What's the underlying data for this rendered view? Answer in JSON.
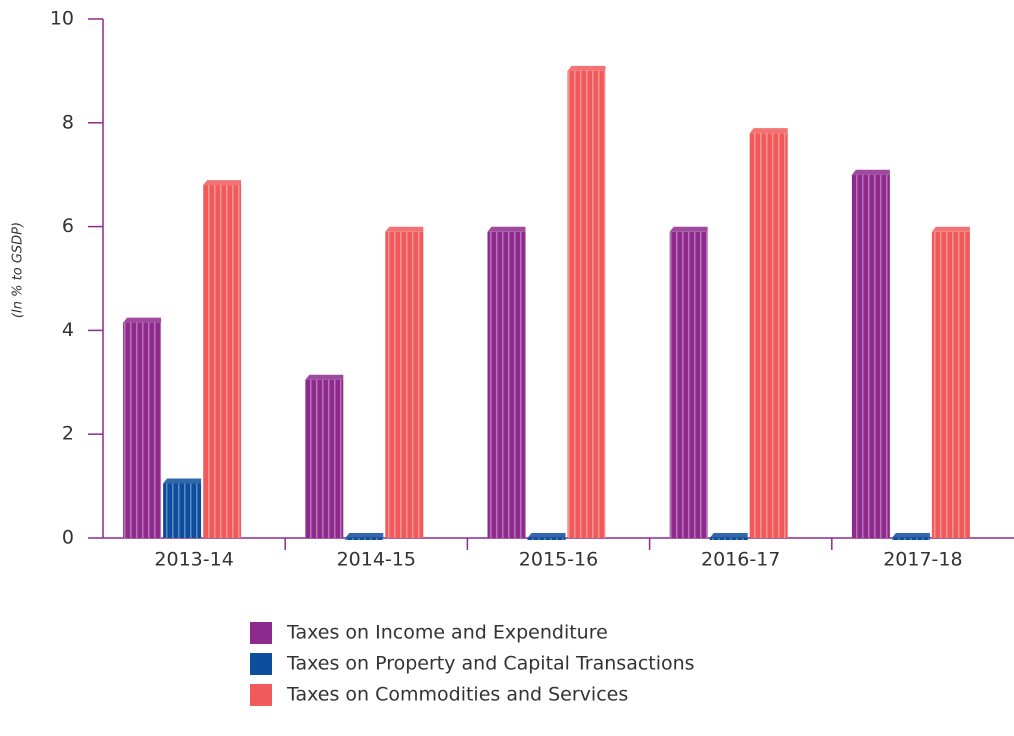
{
  "chart_data": {
    "type": "bar",
    "y_label": "(In % to GSDP)",
    "categories": [
      "2013-14",
      "2014-15",
      "2015-16",
      "2016-17",
      "2017-18"
    ],
    "series": [
      {
        "name": "Taxes on Income and Expenditure",
        "color": "#8e2a8e",
        "values": [
          4.15,
          3.05,
          5.9,
          5.9,
          7.0
        ]
      },
      {
        "name": "Taxes on Property and Capital Transactions",
        "color": "#0d4d9e",
        "values": [
          1.05,
          0,
          0,
          0,
          0
        ]
      },
      {
        "name": "Taxes on Commodities and Services",
        "color": "#f05a5a",
        "values": [
          6.8,
          5.9,
          9.0,
          7.8,
          5.9
        ]
      }
    ],
    "ylim": [
      0,
      10
    ],
    "yticks": [
      0,
      2,
      4,
      6,
      8,
      10
    ]
  }
}
